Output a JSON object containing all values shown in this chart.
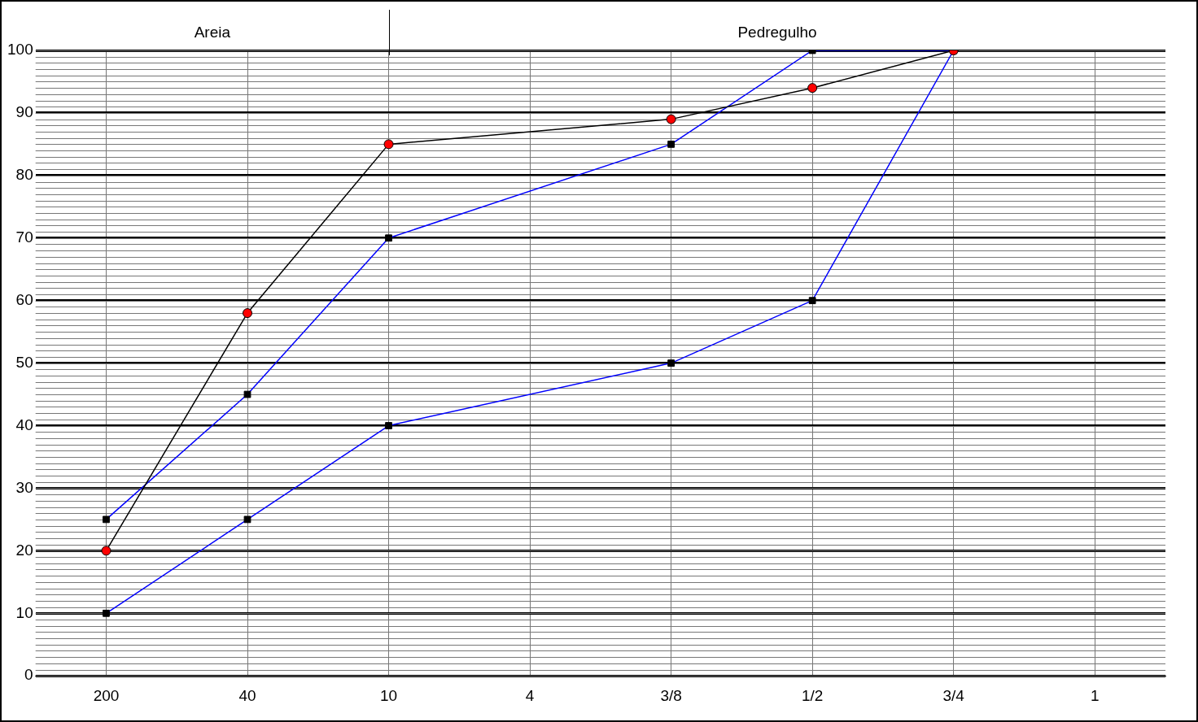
{
  "chart_data": {
    "type": "line",
    "annotations": [
      "Areia",
      "Pedregulho"
    ],
    "categories": [
      "200",
      "40",
      "10",
      "4",
      "3/8",
      "1/2",
      "3/4",
      "1"
    ],
    "ylim": [
      0,
      100
    ],
    "yticks": [
      0,
      10,
      20,
      30,
      40,
      50,
      60,
      70,
      80,
      90,
      100
    ],
    "grid": true,
    "legend": false,
    "series": [
      {
        "color": "#000000",
        "marker": "circle",
        "colors": [
          "#ff0000",
          "#ff0000",
          "#ff0000",
          null,
          "#ff0000",
          "#ff0000",
          "#ff0000",
          null
        ],
        "values": [
          20,
          58,
          85,
          null,
          89,
          94,
          100,
          null
        ]
      },
      {
        "color": "#0000ff",
        "marker": "square",
        "colors": [
          "#000000",
          "#000000",
          "#000000",
          null,
          "#000000",
          "#000000",
          "#000000",
          null
        ],
        "values": [
          25,
          45,
          70,
          null,
          85,
          100,
          100,
          null
        ]
      },
      {
        "color": "#0000ff",
        "marker": "square",
        "colors": [
          "#000000",
          "#000000",
          "#000000",
          null,
          "#000000",
          "#000000",
          "#000000",
          null
        ],
        "values": [
          10,
          25,
          40,
          null,
          50,
          60,
          100,
          null
        ]
      }
    ]
  }
}
